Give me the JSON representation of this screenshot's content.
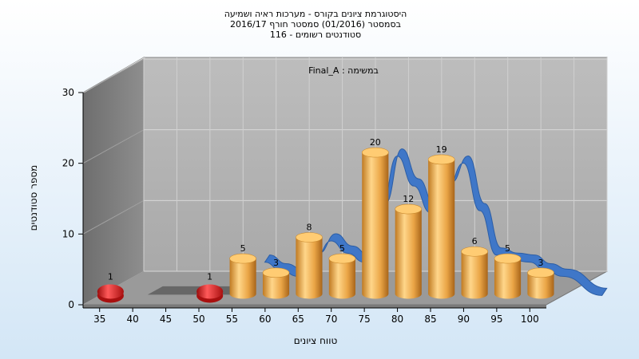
{
  "chart_data": {
    "type": "bar",
    "title": [
      "היסטוגרמת ציונים בקורס - מערכות ראיה ושמיעה",
      "בסמסטר  (01/2016)  סמסטר חורף 2016/17",
      "סטודנטים רשומים - 116"
    ],
    "annotation": "במשימה : Final_A",
    "xlabel": "טווח ציונים",
    "ylabel": "מספר סטודנטים",
    "categories": [
      "35",
      "40",
      "45",
      "50",
      "55",
      "60",
      "65",
      "70",
      "75",
      "80",
      "85",
      "90",
      "95",
      "100"
    ],
    "y_ticks": [
      "0",
      "10",
      "20",
      "30"
    ],
    "ylim": [
      0,
      30
    ],
    "grid": true,
    "series": [
      {
        "values": [
          1,
          0,
          0,
          1,
          5,
          3,
          8,
          5,
          20,
          12,
          19,
          6,
          5,
          3
        ],
        "colors": [
          "#e01818",
          null,
          null,
          "#e01818",
          "#f2b55a",
          "#f2b55a",
          "#f2b55a",
          "#f2b55a",
          "#f2b55a",
          "#f2b55a",
          "#f2b55a",
          "#f2b55a",
          "#f2b55a",
          "#f2b55a"
        ],
        "value_labels": [
          "1",
          "",
          "",
          "1",
          "5",
          "3",
          "8",
          "5",
          "20",
          "12",
          "19",
          "6",
          "5",
          "3"
        ]
      }
    ],
    "trend_color": "#3f77c8"
  }
}
